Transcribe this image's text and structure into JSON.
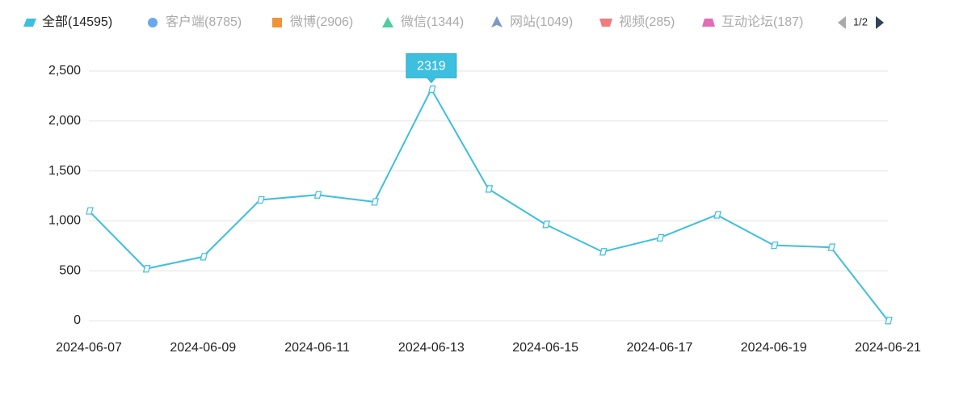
{
  "chart_data": {
    "type": "line",
    "legend": {
      "items": [
        {
          "name": "全部(14595)",
          "color": "#3dbfdf",
          "shape": "parallelogram",
          "active": true
        },
        {
          "name": "客户端(8785)",
          "color": "#6aa7ef",
          "shape": "circle",
          "active": false
        },
        {
          "name": "微博(2906)",
          "color": "#ef9338",
          "shape": "square",
          "active": false
        },
        {
          "name": "微信(1344)",
          "color": "#4ccf9c",
          "shape": "triangle",
          "active": false
        },
        {
          "name": "网站(1049)",
          "color": "#7f98c6",
          "shape": "arrow",
          "active": false
        },
        {
          "name": "视频(285)",
          "color": "#ef7d7d",
          "shape": "inverted-trapezoid",
          "active": false
        },
        {
          "name": "互动论坛(187)",
          "color": "#e26cb5",
          "shape": "trapezoid",
          "active": false
        }
      ],
      "page": "1/2"
    },
    "categories": [
      "2024-06-07",
      null,
      "2024-06-09",
      null,
      "2024-06-11",
      null,
      "2024-06-13",
      null,
      "2024-06-15",
      null,
      "2024-06-17",
      null,
      "2024-06-19",
      null,
      "2024-06-21"
    ],
    "series": [
      {
        "name": "全部(14595)",
        "color": "#3dbfdf",
        "values": [
          1100,
          520,
          640,
          1210,
          1260,
          1190,
          2319,
          1320,
          965,
          690,
          830,
          1060,
          755,
          735,
          1
        ]
      }
    ],
    "tooltip_index": 6,
    "ylim": [
      0,
      2500
    ],
    "yticks": [
      0,
      500,
      {
        "value": 1000,
        "label": "1,000"
      },
      {
        "value": 1500,
        "label": "1,500"
      },
      {
        "value": 2000,
        "label": "2,000"
      },
      {
        "value": 2500,
        "label": "2,500"
      }
    ],
    "grid": true
  }
}
